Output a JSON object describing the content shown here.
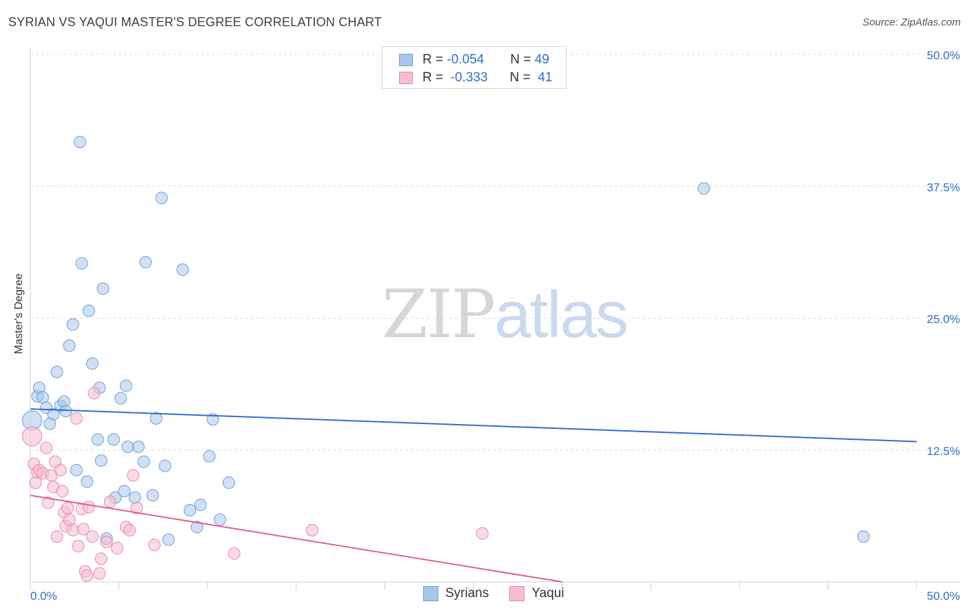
{
  "chart_data": {
    "type": "scatter",
    "title": "SYRIAN VS YAQUI MASTER'S DEGREE CORRELATION CHART",
    "source": "Source: ZipAtlas.com",
    "ylabel": "Master's Degree",
    "xlim": [
      0,
      50
    ],
    "ylim": [
      0,
      50
    ],
    "x_tick_labels": [
      "0.0%",
      "50.0%"
    ],
    "y_ticks": [
      12.5,
      25.0,
      37.5,
      50.0
    ],
    "y_tick_labels": [
      "12.5%",
      "25.0%",
      "37.5%",
      "50.0%"
    ],
    "watermark": {
      "zip": "ZIP",
      "atlas": "atlas"
    },
    "legend": {
      "r_label": "R =",
      "n_label": "N =",
      "entries": [
        {
          "name": "Syrians",
          "r": "-0.054",
          "n": "49",
          "color": "#a9c6ec",
          "edge": "#6f9fd8"
        },
        {
          "name": "Yaqui",
          "r": "-0.333",
          "n": "41",
          "color": "#f6bdd0",
          "edge": "#e58aa9"
        }
      ]
    },
    "series": [
      {
        "name": "Syrians",
        "color": "#a9c6ec",
        "edge": "#6f9fd8",
        "trend": {
          "x": [
            0,
            50
          ],
          "y": [
            16.4,
            13.3
          ],
          "color": "#2f6fc9"
        },
        "points": [
          [
            0.1,
            15.3
          ],
          [
            0.4,
            17.6
          ],
          [
            0.5,
            18.4
          ],
          [
            0.7,
            17.5
          ],
          [
            0.9,
            16.5
          ],
          [
            1.1,
            15.0
          ],
          [
            1.3,
            15.9
          ],
          [
            1.5,
            19.9
          ],
          [
            1.7,
            16.7
          ],
          [
            1.9,
            17.1
          ],
          [
            2.0,
            16.2
          ],
          [
            2.2,
            22.4
          ],
          [
            2.4,
            24.4
          ],
          [
            2.6,
            10.6
          ],
          [
            2.8,
            41.7
          ],
          [
            2.9,
            30.2
          ],
          [
            3.2,
            9.5
          ],
          [
            3.3,
            25.7
          ],
          [
            3.5,
            20.7
          ],
          [
            3.8,
            13.5
          ],
          [
            3.9,
            18.4
          ],
          [
            4.0,
            11.5
          ],
          [
            4.1,
            27.8
          ],
          [
            4.3,
            4.1
          ],
          [
            4.7,
            13.5
          ],
          [
            4.8,
            8.0
          ],
          [
            5.1,
            17.4
          ],
          [
            5.3,
            8.6
          ],
          [
            5.4,
            18.6
          ],
          [
            5.5,
            12.8
          ],
          [
            5.9,
            8.0
          ],
          [
            6.1,
            12.8
          ],
          [
            6.4,
            11.4
          ],
          [
            6.5,
            30.3
          ],
          [
            6.9,
            8.2
          ],
          [
            7.1,
            15.5
          ],
          [
            7.4,
            36.4
          ],
          [
            7.6,
            11.0
          ],
          [
            7.8,
            4.0
          ],
          [
            8.6,
            29.6
          ],
          [
            9.0,
            6.8
          ],
          [
            9.4,
            5.2
          ],
          [
            9.6,
            7.3
          ],
          [
            10.1,
            11.9
          ],
          [
            10.3,
            15.4
          ],
          [
            10.7,
            5.9
          ],
          [
            11.2,
            9.4
          ],
          [
            38.0,
            37.3
          ],
          [
            47.0,
            4.3
          ]
        ]
      },
      {
        "name": "Yaqui",
        "color": "#f6bdd0",
        "edge": "#e58aa9",
        "trend": {
          "x": [
            0,
            30
          ],
          "y": [
            8.2,
            0
          ],
          "color": "#e2608f"
        },
        "points": [
          [
            0.1,
            13.8
          ],
          [
            0.2,
            11.2
          ],
          [
            0.3,
            9.4
          ],
          [
            0.4,
            10.4
          ],
          [
            0.5,
            10.6
          ],
          [
            0.7,
            10.3
          ],
          [
            0.9,
            12.7
          ],
          [
            1.0,
            7.5
          ],
          [
            1.2,
            10.1
          ],
          [
            1.3,
            9.0
          ],
          [
            1.4,
            11.4
          ],
          [
            1.5,
            4.3
          ],
          [
            1.7,
            10.6
          ],
          [
            1.8,
            8.6
          ],
          [
            1.9,
            6.6
          ],
          [
            2.0,
            5.3
          ],
          [
            2.1,
            7.0
          ],
          [
            2.2,
            5.9
          ],
          [
            2.4,
            4.9
          ],
          [
            2.6,
            15.5
          ],
          [
            2.7,
            3.4
          ],
          [
            2.9,
            6.9
          ],
          [
            3.0,
            5.0
          ],
          [
            3.1,
            1.0
          ],
          [
            3.2,
            0.6
          ],
          [
            3.3,
            7.1
          ],
          [
            3.5,
            4.3
          ],
          [
            3.6,
            17.9
          ],
          [
            3.9,
            0.8
          ],
          [
            4.0,
            2.2
          ],
          [
            4.3,
            3.8
          ],
          [
            4.5,
            7.6
          ],
          [
            4.9,
            3.2
          ],
          [
            5.4,
            5.2
          ],
          [
            5.6,
            4.9
          ],
          [
            5.8,
            10.1
          ],
          [
            6.0,
            7.0
          ],
          [
            7.0,
            3.5
          ],
          [
            11.5,
            2.7
          ],
          [
            15.9,
            4.9
          ],
          [
            25.5,
            4.6
          ]
        ]
      }
    ]
  }
}
